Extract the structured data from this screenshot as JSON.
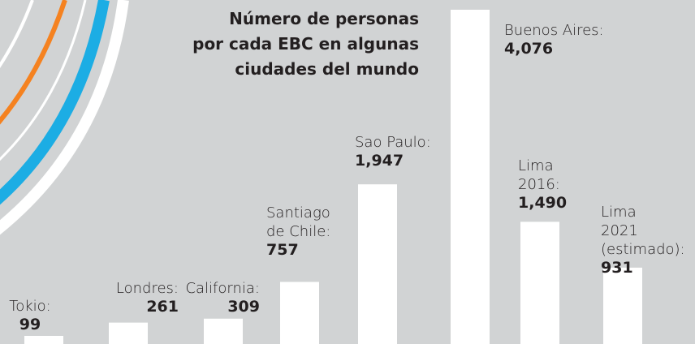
{
  "chart_data": {
    "type": "bar",
    "title": [
      "Número de personas",
      "por cada EBC en algunas",
      "ciudades del mundo"
    ],
    "categories": [
      "Tokio:",
      "Londres:",
      "California:",
      "Santiago de Chile:",
      "Sao Paulo:",
      "Buenos Aires:",
      "Lima 2016:",
      "Lima 2021 (estimado):"
    ],
    "values": [
      99,
      261,
      309,
      757,
      1947,
      4076,
      1490,
      931
    ],
    "value_labels": [
      "99",
      "261",
      "309",
      "757",
      "1,947",
      "4,076",
      "1,490",
      "931"
    ],
    "color": "#ffffff"
  }
}
